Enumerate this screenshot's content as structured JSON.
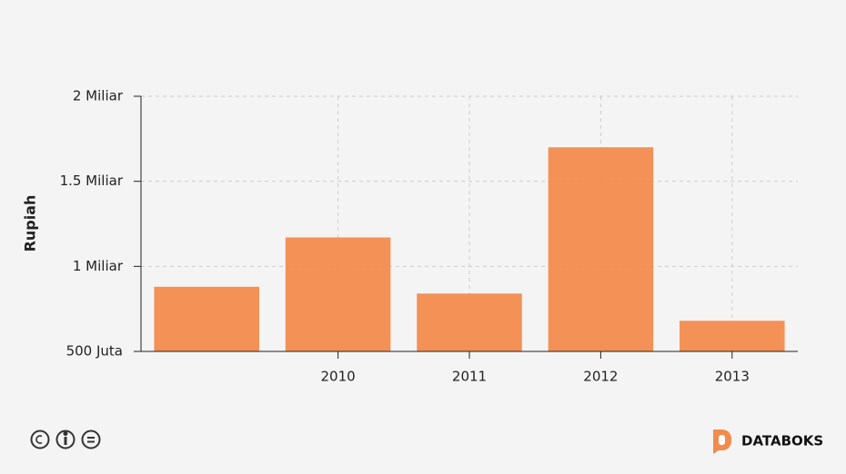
{
  "chart_data": {
    "type": "bar",
    "y_label": "Rupiah",
    "categories": [
      null,
      "2010",
      "2011",
      "2012",
      "2013"
    ],
    "values": [
      880000000,
      1170000000,
      840000000,
      1700000000,
      680000000
    ],
    "color": "#f28b4e",
    "ylim": [
      500000000,
      2000000000
    ],
    "yticks": [
      {
        "value": 500000000,
        "label": "500 Juta"
      },
      {
        "value": 1000000000,
        "label": "1 Miliar"
      },
      {
        "value": 1500000000,
        "label": "1.5 Miliar"
      },
      {
        "value": 2000000000,
        "label": "2 Miliar"
      }
    ],
    "grid": true
  },
  "footer": {
    "brand": "DATABOKS"
  }
}
